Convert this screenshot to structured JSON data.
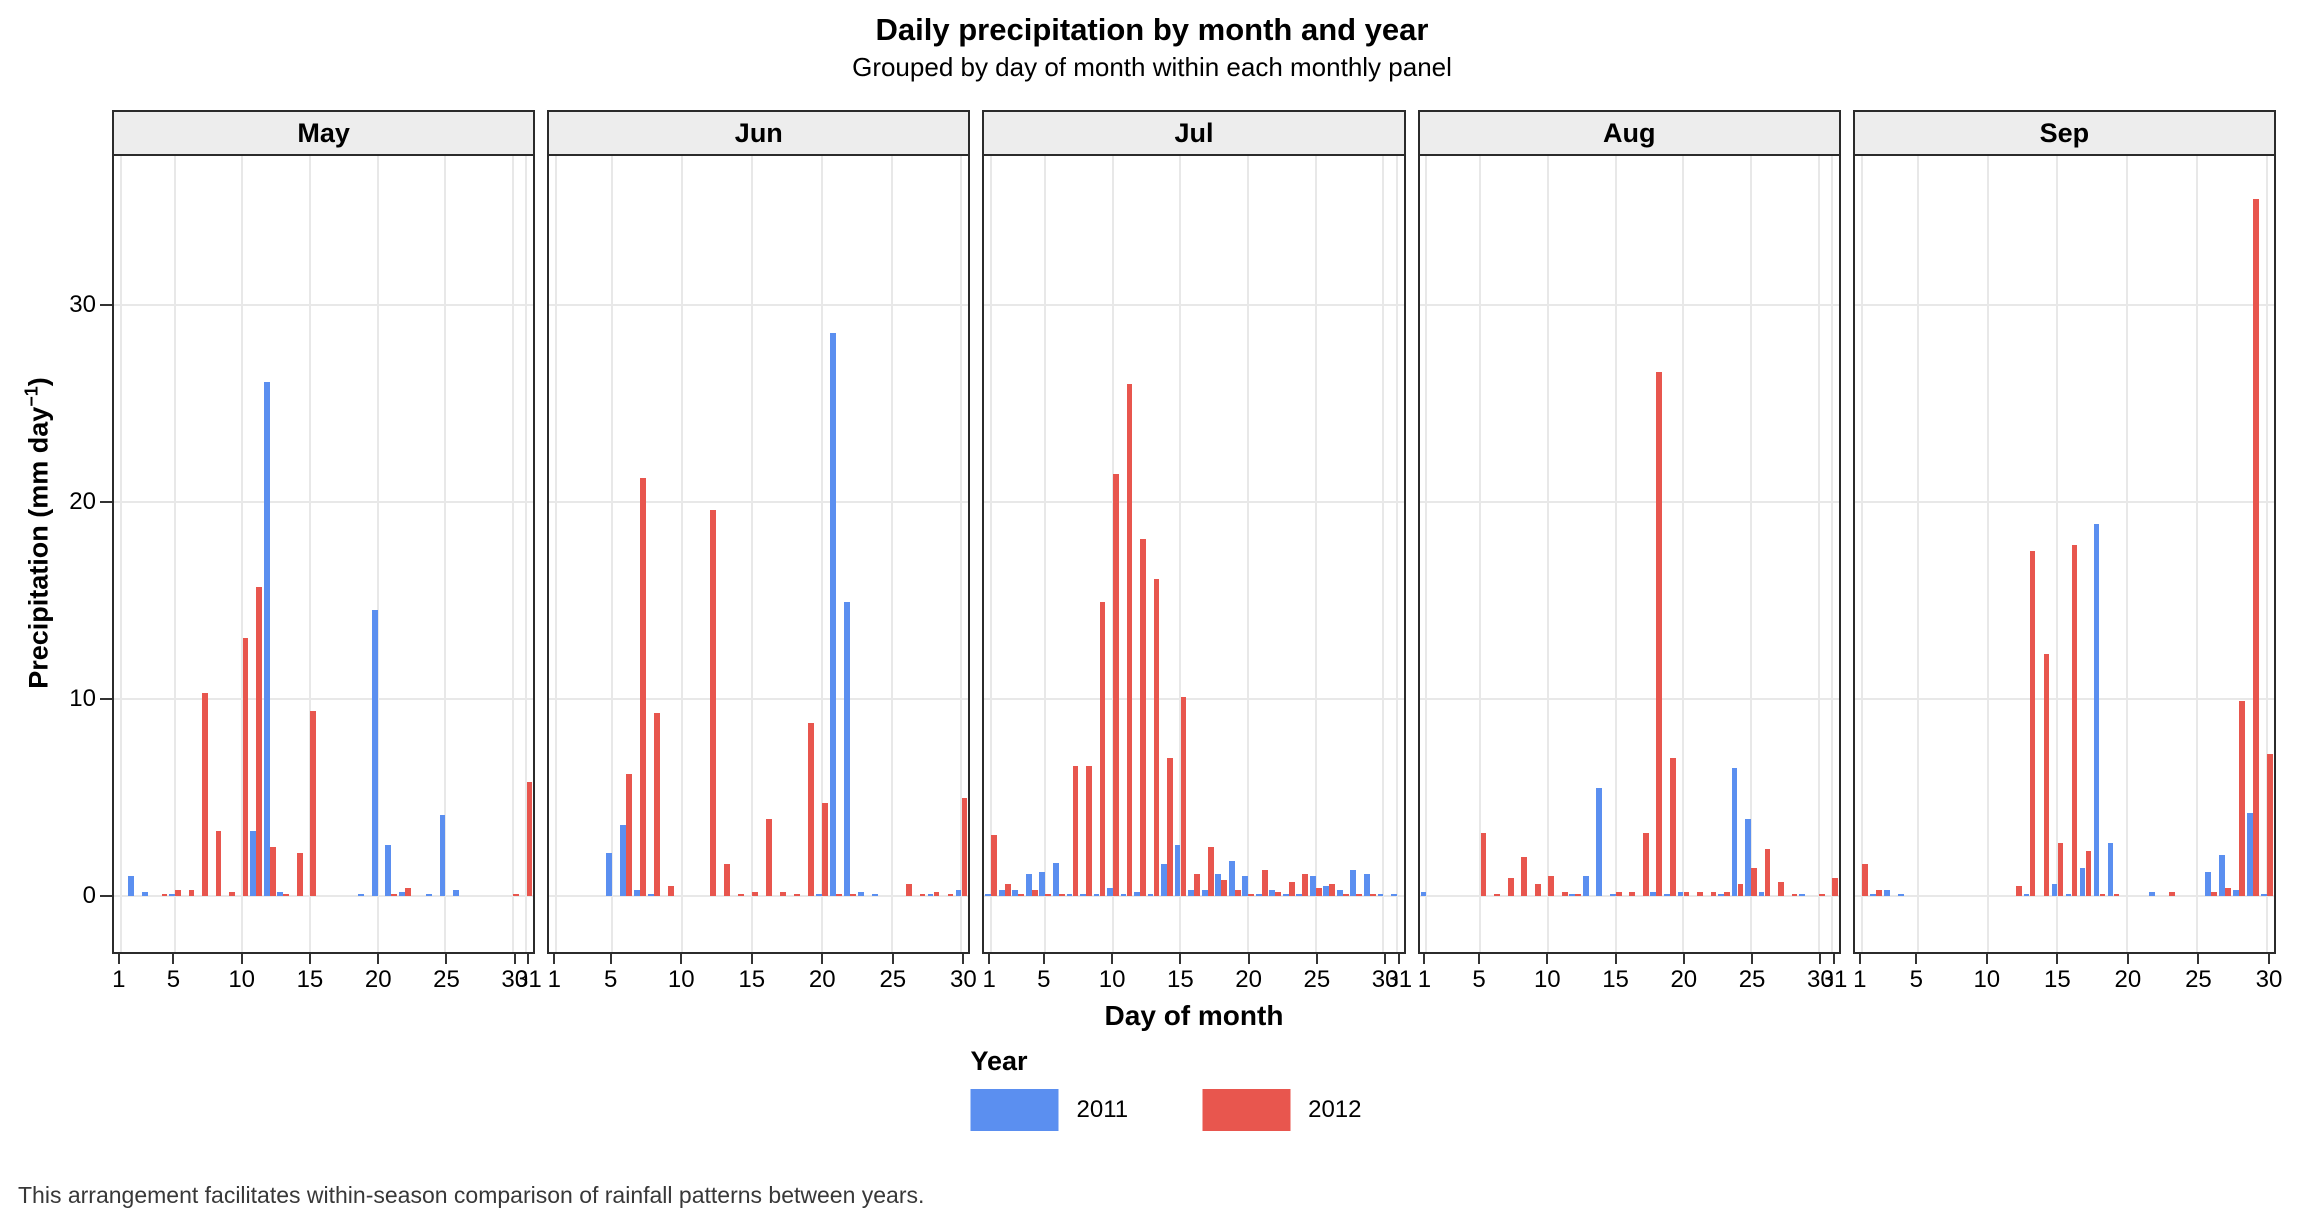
{
  "header": {
    "title": "Daily precipitation by month and year",
    "subtitle": "Grouped by day of month within each monthly panel"
  },
  "axes": {
    "x_title": "Day of month",
    "y_title_pre": "Precipitation (mm day",
    "y_title_sup": "−1",
    "y_title_post": ")",
    "y_ticks": [
      0,
      10,
      20,
      30
    ]
  },
  "legend": {
    "title": "Year",
    "items": [
      {
        "label": "2011",
        "color": "#5b8ff0"
      },
      {
        "label": "2012",
        "color": "#e8564e"
      }
    ]
  },
  "caption": "This arrangement facilitates within-season comparison of rainfall patterns between years.",
  "chart_data": {
    "type": "bar",
    "mode": "grouped",
    "ylabel": "Precipitation (mm day-1)",
    "xlabel": "Day of month",
    "ylim": [
      0,
      37
    ],
    "y_ticks": [
      0,
      10,
      20,
      30
    ],
    "grid": true,
    "legend_position": "bottom",
    "facets": [
      {
        "label": "May",
        "days": 31,
        "x_ticks": [
          1,
          5,
          10,
          15,
          20,
          25,
          30,
          31
        ],
        "series": [
          {
            "name": "2011",
            "values": [
              0,
              1,
              0.2,
              0,
              0.1,
              0,
              0,
              0,
              0,
              0,
              3.3,
              26.1,
              0.2,
              0,
              0,
              0,
              0,
              0,
              0.1,
              14.5,
              2.6,
              0.2,
              0,
              0.1,
              4.1,
              0.3,
              0,
              0,
              0,
              0,
              0
            ]
          },
          {
            "name": "2012",
            "values": [
              0,
              0,
              0,
              0.1,
              0.3,
              0.3,
              10.3,
              3.3,
              0.2,
              13.1,
              15.7,
              2.5,
              0.1,
              2.2,
              9.4,
              0,
              0,
              0,
              0,
              0,
              0.1,
              0.4,
              0,
              0,
              0,
              0,
              0,
              0,
              0,
              0.1,
              5.8
            ]
          }
        ]
      },
      {
        "label": "Jun",
        "days": 30,
        "x_ticks": [
          1,
          5,
          10,
          15,
          20,
          25,
          30
        ],
        "series": [
          {
            "name": "2011",
            "values": [
              0,
              0,
              0,
              0,
              2.2,
              3.6,
              0.3,
              0.1,
              0,
              0,
              0,
              0,
              0,
              0,
              0,
              0,
              0,
              0,
              0,
              0.1,
              28.6,
              14.9,
              0.2,
              0.1,
              0,
              0,
              0,
              0.1,
              0,
              0.3
            ]
          },
          {
            "name": "2012",
            "values": [
              0,
              0,
              0,
              0,
              0,
              6.2,
              21.2,
              9.3,
              0.5,
              0,
              0,
              19.6,
              1.6,
              0.1,
              0.2,
              3.9,
              0.2,
              0.1,
              8.8,
              4.7,
              0.1,
              0.1,
              0,
              0,
              0,
              0.6,
              0.1,
              0.2,
              0.1,
              5
            ]
          }
        ]
      },
      {
        "label": "Jul",
        "days": 31,
        "x_ticks": [
          1,
          5,
          10,
          15,
          20,
          25,
          30,
          31
        ],
        "series": [
          {
            "name": "2011",
            "values": [
              0.1,
              0.3,
              0.3,
              1.1,
              1.2,
              1.7,
              0.1,
              0.1,
              0.1,
              0.4,
              0.1,
              0.2,
              0.1,
              1.6,
              2.6,
              0.3,
              0.3,
              1.1,
              1.8,
              1,
              0.1,
              0.3,
              0.1,
              0.1,
              1,
              0.5,
              0.3,
              1.3,
              1.1,
              0.1,
              0.1
            ]
          },
          {
            "name": "2012",
            "values": [
              3.1,
              0.6,
              0.1,
              0.3,
              0.1,
              0.1,
              6.6,
              6.6,
              14.9,
              21.4,
              26,
              18.1,
              16.1,
              7,
              10.1,
              1.1,
              2.5,
              0.8,
              0.3,
              0.1,
              1.3,
              0.2,
              0.7,
              1.1,
              0.4,
              0.6,
              0.1,
              0.1,
              0.1,
              0,
              0
            ]
          }
        ]
      },
      {
        "label": "Aug",
        "days": 31,
        "x_ticks": [
          1,
          5,
          10,
          15,
          20,
          25,
          30,
          31
        ],
        "series": [
          {
            "name": "2011",
            "values": [
              0.2,
              0,
              0,
              0,
              0,
              0,
              0,
              0,
              0,
              0,
              0,
              0.1,
              1,
              5.5,
              0.1,
              0,
              0,
              0.2,
              0.1,
              0.2,
              0,
              0,
              0.1,
              6.5,
              3.9,
              0.2,
              0,
              0,
              0.1,
              0,
              0
            ]
          },
          {
            "name": "2012",
            "values": [
              0,
              0,
              0,
              0,
              3.2,
              0.1,
              0.9,
              2,
              0.6,
              1,
              0.2,
              0.1,
              0,
              0,
              0.2,
              0.2,
              3.2,
              26.6,
              7,
              0.2,
              0.2,
              0.2,
              0.2,
              0.6,
              1.4,
              2.4,
              0.7,
              0.1,
              0,
              0.1,
              0.9
            ]
          }
        ]
      },
      {
        "label": "Sep",
        "days": 30,
        "x_ticks": [
          1,
          5,
          10,
          15,
          20,
          25,
          30
        ],
        "series": [
          {
            "name": "2011",
            "values": [
              0,
              0.1,
              0.3,
              0.1,
              0,
              0,
              0,
              0,
              0,
              0,
              0,
              0,
              0.1,
              0,
              0.6,
              0.1,
              1.4,
              18.9,
              2.7,
              0,
              0,
              0.2,
              0,
              0,
              0,
              1.2,
              2.1,
              0.3,
              4.2,
              0.1
            ]
          },
          {
            "name": "2012",
            "values": [
              1.6,
              0.3,
              0,
              0,
              0,
              0,
              0,
              0,
              0,
              0,
              0,
              0.5,
              17.5,
              12.3,
              2.7,
              17.8,
              2.3,
              0.1,
              0.1,
              0,
              0,
              0,
              0.2,
              0,
              0,
              0.2,
              0.4,
              9.9,
              35.4,
              7.2
            ]
          }
        ]
      }
    ]
  }
}
